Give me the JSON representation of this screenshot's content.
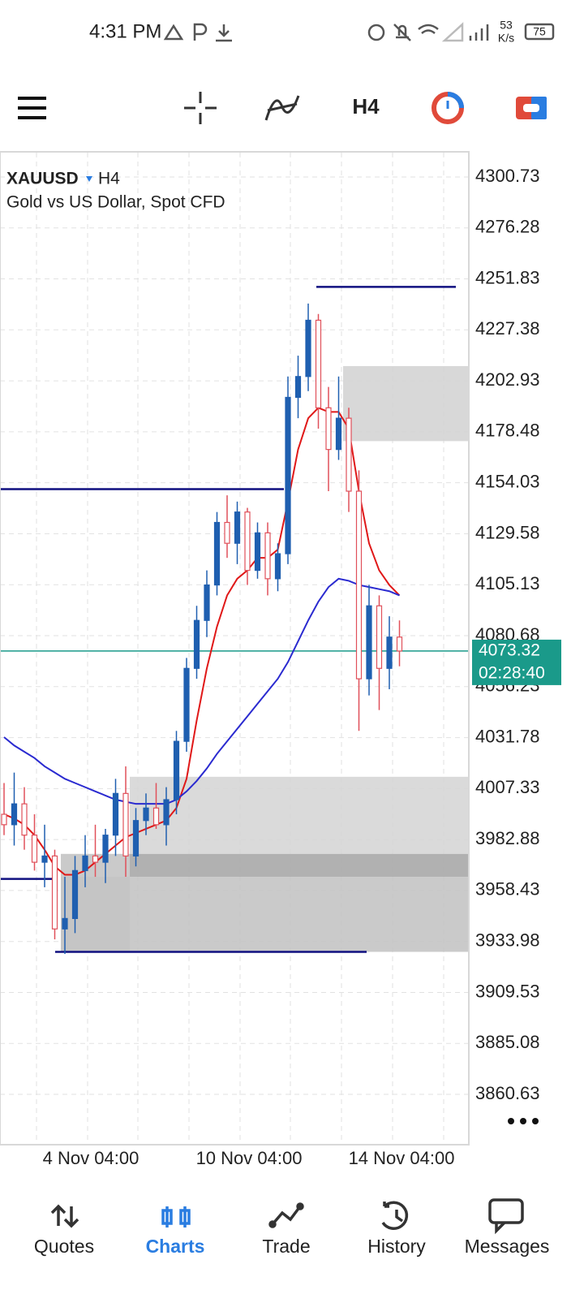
{
  "status_bar": {
    "time": "4:31 PM",
    "net_speed": "53",
    "net_unit": "K/s",
    "battery": "75"
  },
  "toolbar": {
    "timeframe": "H4"
  },
  "chart_data": {
    "type": "candlestick",
    "symbol": "XAUUSD",
    "timeframe": "H4",
    "description": "Gold vs US Dollar, Spot CFD",
    "ylim": [
      3836.5,
      4312.4
    ],
    "yticks": [
      4300.73,
      4276.28,
      4251.83,
      4227.38,
      4202.93,
      4178.48,
      4154.03,
      4129.58,
      4105.13,
      4080.68,
      4056.23,
      4031.78,
      4007.33,
      3982.88,
      3958.43,
      3933.98,
      3909.53,
      3885.08,
      3860.63
    ],
    "x_labels": [
      "4 Nov 04:00",
      "10 Nov 04:00",
      "14 Nov 04:00"
    ],
    "bull_color": "#1f5fb0",
    "bear_color": "#e0505a",
    "candles": {
      "open": [
        3995,
        3990,
        4000,
        3985,
        3972,
        3975,
        3940,
        3945,
        3968,
        3975,
        3972,
        3985,
        4005,
        3975,
        3992,
        3998,
        3990,
        4002,
        4030,
        4065,
        4088,
        4105,
        4135,
        4125,
        4140,
        4112,
        4130,
        4108,
        4120,
        4195,
        4205,
        4232,
        4190,
        4170,
        4185,
        4150,
        4060,
        4095,
        4065,
        4080
      ],
      "high": [
        4010,
        4015,
        4008,
        3995,
        3990,
        3978,
        3965,
        3975,
        3985,
        3990,
        3988,
        4012,
        4018,
        3998,
        4005,
        4010,
        4008,
        4035,
        4070,
        4095,
        4112,
        4140,
        4148,
        4145,
        4142,
        4135,
        4135,
        4125,
        4205,
        4215,
        4240,
        4235,
        4200,
        4205,
        4190,
        4160,
        4105,
        4100,
        4090,
        4088
      ],
      "low": [
        3985,
        3980,
        3978,
        3968,
        3960,
        3935,
        3928,
        3938,
        3960,
        3965,
        3962,
        3975,
        3965,
        3970,
        3985,
        3988,
        3980,
        3995,
        4025,
        4060,
        4080,
        4100,
        4118,
        4115,
        4105,
        4108,
        4100,
        4102,
        4115,
        4185,
        4198,
        4180,
        4150,
        4165,
        4140,
        4035,
        4052,
        4045,
        4055,
        4066
      ],
      "close": [
        3990,
        4000,
        3985,
        3972,
        3975,
        3940,
        3945,
        3968,
        3975,
        3972,
        3985,
        4005,
        3975,
        3992,
        3998,
        3990,
        4002,
        4030,
        4065,
        4088,
        4105,
        4135,
        4125,
        4140,
        4112,
        4130,
        4108,
        4120,
        4195,
        4205,
        4232,
        4190,
        4170,
        4185,
        4150,
        4060,
        4095,
        4065,
        4080,
        4073.32
      ]
    },
    "moving_averages": [
      {
        "color": "#e01818",
        "values": [
          3995,
          3993,
          3990,
          3985,
          3978,
          3970,
          3966,
          3966,
          3968,
          3972,
          3976,
          3980,
          3984,
          3986,
          3988,
          3990,
          3992,
          3998,
          4012,
          4040,
          4065,
          4085,
          4100,
          4108,
          4112,
          4118,
          4118,
          4122,
          4145,
          4170,
          4185,
          4190,
          4188,
          4188,
          4180,
          4150,
          4125,
          4112,
          4105,
          4100
        ]
      },
      {
        "color": "#2a2ad0",
        "values": [
          4032,
          4028,
          4025,
          4022,
          4018,
          4015,
          4012,
          4010,
          4008,
          4006,
          4004,
          4002,
          4001,
          4000,
          4000,
          4000,
          4000,
          4002,
          4006,
          4011,
          4017,
          4024,
          4030,
          4036,
          4042,
          4048,
          4054,
          4060,
          4068,
          4078,
          4088,
          4097,
          4104,
          4108,
          4107,
          4105,
          4104,
          4103,
          4102,
          4100
        ]
      }
    ],
    "levels": [
      4248,
      4151,
      3964,
      3929
    ],
    "level_color": "#101080",
    "zones": [
      [
        4210,
        4174
      ],
      [
        4013,
        3976
      ],
      [
        3976,
        3965
      ],
      [
        3965,
        3929
      ]
    ],
    "current_price": 4073.32,
    "current_color": "#1a9a8a",
    "countdown": "02:28:40"
  },
  "nav": {
    "items": [
      {
        "label": "Quotes"
      },
      {
        "label": "Charts"
      },
      {
        "label": "Trade"
      },
      {
        "label": "History"
      },
      {
        "label": "Messages"
      }
    ],
    "active": 1
  }
}
